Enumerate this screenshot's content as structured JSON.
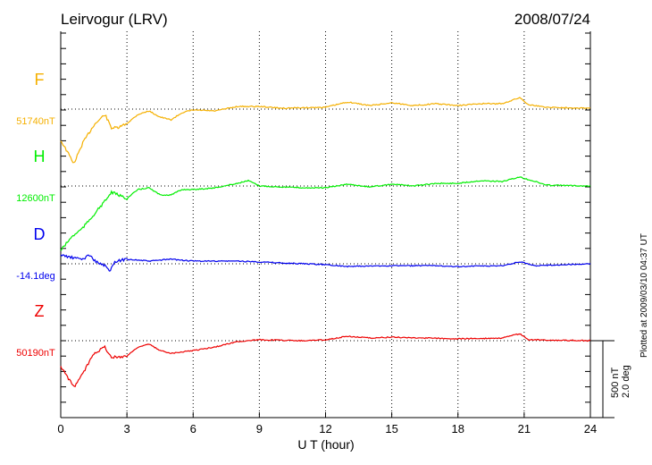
{
  "chart_data": {
    "type": "line",
    "title": "Leirvogur (LRV)",
    "date": "2008/07/24",
    "xlabel": "U T (hour)",
    "xlim": [
      0,
      24
    ],
    "xticks": [
      "0",
      "3",
      "6",
      "9",
      "12",
      "15",
      "18",
      "21",
      "24"
    ],
    "scale_bar": {
      "nT": "500 nT",
      "deg": "2.0 deg"
    },
    "plotted_note": "Plotted at 2009/03/10 04:37 UT",
    "series": [
      {
        "name": "F",
        "baseline": "51740nT",
        "color": "#f5b000",
        "unit": "nT",
        "x": [
          0,
          0.6,
          1,
          1.5,
          2,
          2.3,
          2.6,
          3,
          3.5,
          4,
          4.5,
          5,
          5.5,
          6,
          7,
          8,
          9,
          10,
          12,
          13,
          14,
          15,
          16,
          17,
          18,
          19,
          20,
          20.8,
          21.2,
          22,
          24
        ],
        "values": [
          -203,
          -354,
          -220,
          -104,
          -35,
          -122,
          -122,
          -93,
          -35,
          -12,
          -52,
          -70,
          -23,
          -6,
          -12,
          17,
          17,
          6,
          12,
          46,
          23,
          41,
          23,
          35,
          23,
          35,
          35,
          75,
          29,
          12,
          6
        ]
      },
      {
        "name": "H",
        "baseline": "12600nT",
        "color": "#00ee00",
        "unit": "nT",
        "x": [
          0,
          0.5,
          1,
          1.5,
          2,
          2.3,
          3,
          3.5,
          4,
          4.5,
          5,
          5.5,
          6,
          7,
          8,
          8.5,
          9,
          10,
          11,
          12,
          13,
          14,
          15,
          16,
          17,
          18,
          19,
          20,
          20.8,
          21.5,
          22,
          24
        ],
        "values": [
          -418,
          -331,
          -273,
          -186,
          -99,
          -41,
          -81,
          -23,
          -12,
          -58,
          -58,
          -23,
          -23,
          -12,
          17,
          35,
          0,
          -6,
          -12,
          -12,
          12,
          -6,
          12,
          0,
          17,
          17,
          35,
          29,
          58,
          29,
          6,
          0
        ]
      },
      {
        "name": "D",
        "baseline": "-14.1deg",
        "color": "#0000ee",
        "unit": "deg",
        "x": [
          0,
          0.5,
          1,
          1.3,
          1.6,
          2,
          2.2,
          2.5,
          3,
          4,
          5,
          6,
          8,
          9,
          10,
          12,
          13,
          15,
          17,
          18,
          20,
          20.8,
          21.5,
          24
        ],
        "values": [
          0.23,
          0.16,
          0.12,
          0.23,
          0.05,
          -0.05,
          -0.19,
          0.07,
          0.12,
          0.07,
          0.12,
          0.07,
          0.07,
          0.05,
          0.02,
          -0.02,
          -0.07,
          -0.05,
          -0.05,
          -0.07,
          -0.05,
          0.05,
          -0.05,
          0
        ]
      },
      {
        "name": "Z",
        "baseline": "50190nT",
        "color": "#ee0000",
        "unit": "nT",
        "x": [
          0,
          0.6,
          1,
          1.5,
          2,
          2.3,
          3,
          3.5,
          4,
          4.5,
          5,
          6,
          7,
          8,
          9,
          11,
          12,
          13,
          14,
          15,
          18,
          20,
          20.8,
          21.2,
          24
        ],
        "values": [
          -168,
          -302,
          -215,
          -81,
          -41,
          -110,
          -99,
          -41,
          -23,
          -64,
          -81,
          -64,
          -41,
          -6,
          6,
          0,
          6,
          29,
          17,
          23,
          12,
          17,
          46,
          6,
          0
        ]
      }
    ]
  }
}
